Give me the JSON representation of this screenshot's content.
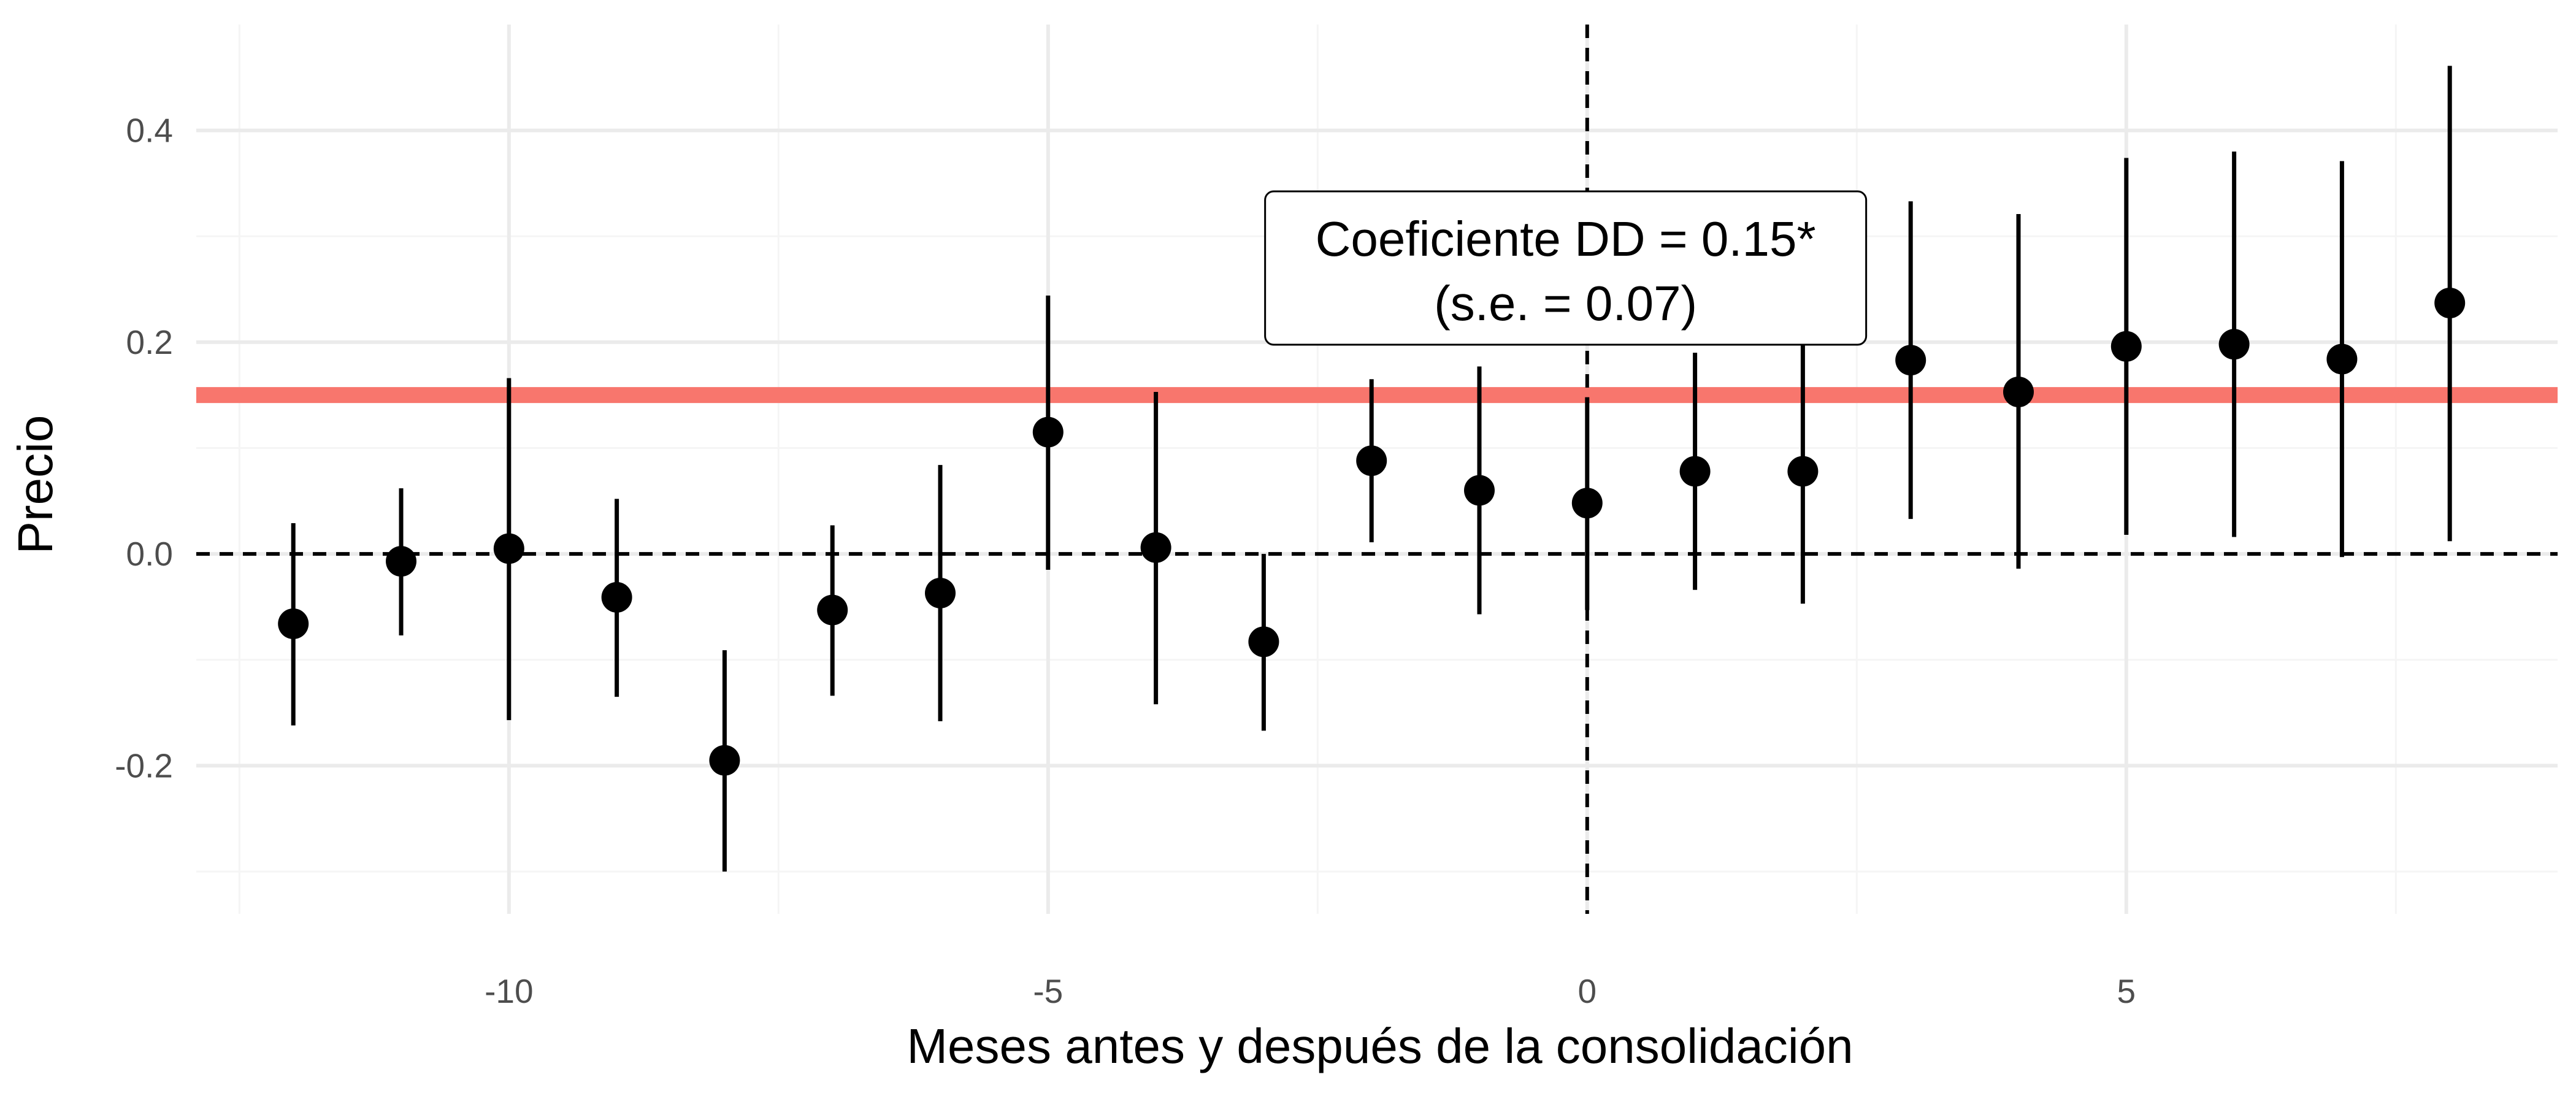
{
  "chart_data": {
    "type": "scatter",
    "subtype": "point-range event study",
    "xlabel": "Meses antes y después de la consolidación",
    "ylabel": "Precio",
    "xlim": [
      -12.9,
      9.0
    ],
    "ylim": [
      -0.34,
      0.5
    ],
    "x_ticks": [
      -10,
      -5,
      0,
      5
    ],
    "x_tick_labels": [
      "-10",
      "-5",
      "0",
      "5"
    ],
    "y_ticks": [
      -0.2,
      0.0,
      0.2,
      0.4
    ],
    "y_tick_labels": [
      "-0.2",
      "0.0",
      "0.2",
      "0.4"
    ],
    "x_minor_ticks": [
      -12.5,
      -7.5,
      -2.5,
      2.5,
      7.5
    ],
    "y_minor_ticks": [
      -0.3,
      -0.1,
      0.1,
      0.3
    ],
    "grid": true,
    "points": [
      {
        "x": -12,
        "y": -0.066,
        "low": -0.162,
        "high": 0.029
      },
      {
        "x": -11,
        "y": -0.007,
        "low": -0.077,
        "high": 0.062
      },
      {
        "x": -10,
        "y": 0.005,
        "low": -0.157,
        "high": 0.166
      },
      {
        "x": -9,
        "y": -0.041,
        "low": -0.135,
        "high": 0.052
      },
      {
        "x": -8,
        "y": -0.195,
        "low": -0.3,
        "high": -0.091
      },
      {
        "x": -7,
        "y": -0.053,
        "low": -0.134,
        "high": 0.027
      },
      {
        "x": -6,
        "y": -0.037,
        "low": -0.158,
        "high": 0.084
      },
      {
        "x": -5,
        "y": 0.115,
        "low": -0.015,
        "high": 0.244
      },
      {
        "x": -4,
        "y": 0.006,
        "low": -0.142,
        "high": 0.153
      },
      {
        "x": -3,
        "y": -0.083,
        "low": -0.167,
        "high": 0.0
      },
      {
        "x": -2,
        "y": 0.088,
        "low": 0.011,
        "high": 0.165
      },
      {
        "x": -1,
        "y": 0.06,
        "low": -0.057,
        "high": 0.177
      },
      {
        "x": 0,
        "y": 0.048,
        "low": -0.053,
        "high": 0.148
      },
      {
        "x": 1,
        "y": 0.078,
        "low": -0.034,
        "high": 0.19
      },
      {
        "x": 2,
        "y": 0.078,
        "low": -0.047,
        "high": 0.203
      },
      {
        "x": 3,
        "y": 0.183,
        "low": 0.033,
        "high": 0.333
      },
      {
        "x": 4,
        "y": 0.153,
        "low": -0.014,
        "high": 0.321
      },
      {
        "x": 5,
        "y": 0.196,
        "low": 0.018,
        "high": 0.374
      },
      {
        "x": 6,
        "y": 0.198,
        "low": 0.016,
        "high": 0.38
      },
      {
        "x": 7,
        "y": 0.184,
        "low": -0.003,
        "high": 0.371
      },
      {
        "x": 8,
        "y": 0.237,
        "low": 0.012,
        "high": 0.461
      }
    ],
    "reference_lines": {
      "horizontal_dashed_y": 0.0,
      "vertical_dashed_x": 0,
      "dd_estimate_y": 0.15,
      "dd_estimate_color": "#F8766D"
    },
    "annotation": {
      "x": -0.2,
      "y": 0.27,
      "line1": "Coeficiente DD = 0.15*",
      "line2": "(s.e. = 0.07)"
    },
    "colors": {
      "points": "#000000",
      "grid_major": "#ebebeb",
      "grid_minor": "#f5f5f5",
      "tick_label": "#4d4d4d"
    }
  }
}
